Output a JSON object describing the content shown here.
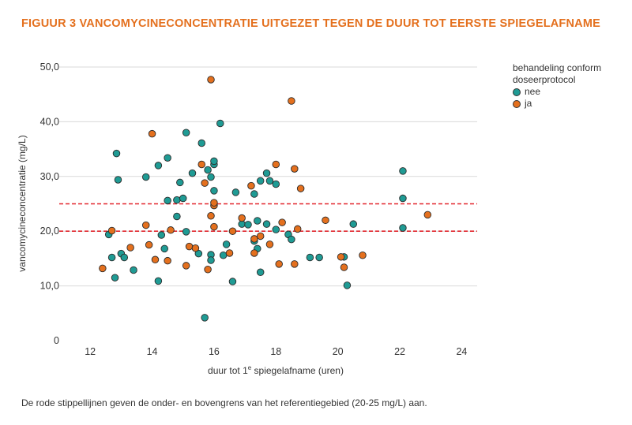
{
  "title": "FIGUUR 3 VANCOMYCINECONCENTRATIE UITGEZET TEGEN DE DUUR TOT EERSTE SPIEGELAFNAME",
  "caption": "De rode stippellijnen geven de onder- en bovengrens van het referentiegebied (20-25 mg/L) aan.",
  "colors": {
    "nee": "#1f9b94",
    "ja": "#e4701e",
    "refline": "#e1262d",
    "grid": "#d9d9d9",
    "title": "#e4701e"
  },
  "chart_data": {
    "type": "scatter",
    "xlabel": "duur tot 1e spiegelafname (uren)",
    "xlabel_parts": {
      "before": "duur tot 1",
      "sup": "e",
      "after": " spiegelafname (uren)"
    },
    "ylabel": "vancomycineconcentratie (mg/L)",
    "xlim": [
      11,
      24.5
    ],
    "ylim": [
      0,
      50
    ],
    "x_ticks": [
      "12",
      "14",
      "16",
      "18",
      "20",
      "22",
      "24"
    ],
    "y_ticks": [
      "0",
      "10,0",
      "20,0",
      "30,0",
      "40,0",
      "50,0"
    ],
    "grid": "horizontal",
    "legend": {
      "title": "behandeling conform doseerprotocol",
      "title_lines": [
        "behandeling conform",
        "doseerprotocol"
      ],
      "position": "right",
      "entries": [
        "nee",
        "ja"
      ]
    },
    "reference_lines": [
      20,
      25
    ],
    "series": [
      {
        "name": "nee",
        "points": [
          [
            12.6,
            19.4
          ],
          [
            12.7,
            15.2
          ],
          [
            12.8,
            11.5
          ],
          [
            12.85,
            34.2
          ],
          [
            12.9,
            29.4
          ],
          [
            13.0,
            15.9
          ],
          [
            13.1,
            15.2
          ],
          [
            13.4,
            12.9
          ],
          [
            13.8,
            29.9
          ],
          [
            14.2,
            10.9
          ],
          [
            14.2,
            32.0
          ],
          [
            14.3,
            19.3
          ],
          [
            14.4,
            16.8
          ],
          [
            14.5,
            25.6
          ],
          [
            14.5,
            33.4
          ],
          [
            14.8,
            22.7
          ],
          [
            14.8,
            25.7
          ],
          [
            14.9,
            28.9
          ],
          [
            15.0,
            26.0
          ],
          [
            15.1,
            19.9
          ],
          [
            15.1,
            38.0
          ],
          [
            15.3,
            30.6
          ],
          [
            15.5,
            15.9
          ],
          [
            15.6,
            36.1
          ],
          [
            15.7,
            4.2
          ],
          [
            15.8,
            31.2
          ],
          [
            15.9,
            15.7
          ],
          [
            15.9,
            14.7
          ],
          [
            15.9,
            29.9
          ],
          [
            16.0,
            32.2
          ],
          [
            16.0,
            32.8
          ],
          [
            16.0,
            27.4
          ],
          [
            16.2,
            39.7
          ],
          [
            16.3,
            15.6
          ],
          [
            16.4,
            17.6
          ],
          [
            16.6,
            10.8
          ],
          [
            16.7,
            27.1
          ],
          [
            16.9,
            21.3
          ],
          [
            17.1,
            21.2
          ],
          [
            17.3,
            18.2
          ],
          [
            17.3,
            26.8
          ],
          [
            17.4,
            16.8
          ],
          [
            17.4,
            21.9
          ],
          [
            17.5,
            29.2
          ],
          [
            17.5,
            12.5
          ],
          [
            17.7,
            21.3
          ],
          [
            17.7,
            30.6
          ],
          [
            17.8,
            29.2
          ],
          [
            18.0,
            28.6
          ],
          [
            18.0,
            20.3
          ],
          [
            18.4,
            19.4
          ],
          [
            18.5,
            18.5
          ],
          [
            19.1,
            15.2
          ],
          [
            19.4,
            15.2
          ],
          [
            20.2,
            15.3
          ],
          [
            20.3,
            10.1
          ],
          [
            20.5,
            21.3
          ],
          [
            22.1,
            31.0
          ],
          [
            22.1,
            26.0
          ],
          [
            22.1,
            20.6
          ]
        ]
      },
      {
        "name": "ja",
        "points": [
          [
            12.4,
            13.2
          ],
          [
            12.7,
            20.1
          ],
          [
            13.3,
            17.0
          ],
          [
            13.8,
            21.1
          ],
          [
            13.9,
            17.5
          ],
          [
            14.0,
            37.8
          ],
          [
            14.1,
            14.8
          ],
          [
            14.5,
            14.6
          ],
          [
            14.6,
            20.2
          ],
          [
            15.1,
            13.7
          ],
          [
            15.2,
            17.2
          ],
          [
            15.4,
            16.9
          ],
          [
            15.6,
            32.2
          ],
          [
            15.7,
            28.8
          ],
          [
            15.8,
            13.0
          ],
          [
            15.9,
            22.8
          ],
          [
            15.9,
            47.7
          ],
          [
            16.0,
            24.7
          ],
          [
            16.0,
            25.2
          ],
          [
            16.0,
            20.8
          ],
          [
            16.5,
            16.0
          ],
          [
            16.6,
            20.0
          ],
          [
            16.9,
            22.4
          ],
          [
            17.2,
            28.3
          ],
          [
            17.3,
            16.0
          ],
          [
            17.3,
            18.6
          ],
          [
            17.5,
            19.1
          ],
          [
            17.8,
            17.6
          ],
          [
            18.0,
            32.2
          ],
          [
            18.1,
            14.0
          ],
          [
            18.2,
            21.6
          ],
          [
            18.5,
            43.8
          ],
          [
            18.6,
            14.0
          ],
          [
            18.6,
            31.4
          ],
          [
            18.7,
            20.4
          ],
          [
            18.8,
            27.8
          ],
          [
            19.6,
            22.0
          ],
          [
            20.1,
            15.3
          ],
          [
            20.2,
            13.4
          ],
          [
            20.8,
            15.6
          ],
          [
            22.9,
            23.0
          ]
        ]
      }
    ]
  }
}
